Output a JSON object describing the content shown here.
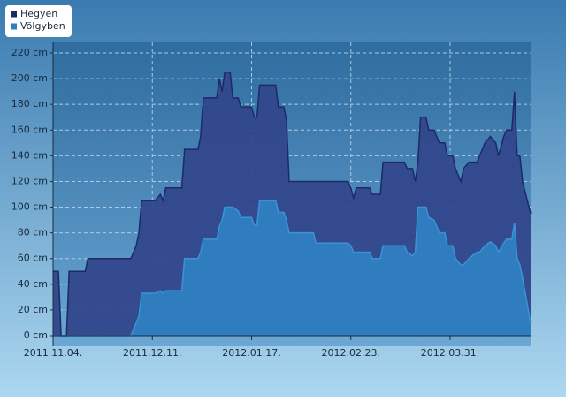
{
  "chart_data": {
    "type": "area",
    "x": [
      "2011.11.04.",
      "2011.11.06.",
      "2011.11.07.",
      "2011.11.09.",
      "2011.11.10.",
      "2011.11.16.",
      "2011.11.17.",
      "2011.12.03.",
      "2011.12.04.",
      "2011.12.05.",
      "2011.12.06.",
      "2011.12.07.",
      "2011.12.12.",
      "2011.12.14.",
      "2011.12.15.",
      "2011.12.16.",
      "2011.12.22.",
      "2011.12.23.",
      "2011.12.28.",
      "2011.12.29.",
      "2011.12.30.",
      "2012.01.04.",
      "2012.01.05.",
      "2012.01.06.",
      "2012.01.07.",
      "2012.01.09.",
      "2012.01.10.",
      "2012.01.12.",
      "2012.01.13.",
      "2012.01.17.",
      "2012.01.18.",
      "2012.01.19.",
      "2012.01.20.",
      "2012.01.26.",
      "2012.01.27.",
      "2012.01.29.",
      "2012.01.30.",
      "2012.01.31.",
      "2012.02.09.",
      "2012.02.10.",
      "2012.02.22.",
      "2012.02.23.",
      "2012.02.24.",
      "2012.02.25.",
      "2012.03.01.",
      "2012.03.02.",
      "2012.03.05.",
      "2012.03.06.",
      "2012.03.14.",
      "2012.03.15.",
      "2012.03.17.",
      "2012.03.18.",
      "2012.03.19.",
      "2012.03.20.",
      "2012.03.22.",
      "2012.03.23.",
      "2012.03.25.",
      "2012.03.27.",
      "2012.03.29.",
      "2012.03.30.",
      "2012.04.01.",
      "2012.04.02.",
      "2012.04.04.",
      "2012.04.05.",
      "2012.04.07.",
      "2012.04.10.",
      "2012.04.11.",
      "2012.04.13.",
      "2012.04.15.",
      "2012.04.17.",
      "2012.04.18.",
      "2012.04.20.",
      "2012.04.21.",
      "2012.04.23.",
      "2012.04.24.",
      "2012.04.25.",
      "2012.04.26.",
      "2012.04.27.",
      "2012.04.30."
    ],
    "series": [
      {
        "name": "Hegyen",
        "color": "#33478c",
        "line_color": "#1c2a66",
        "values": [
          50,
          50,
          0,
          0,
          50,
          50,
          60,
          60,
          65,
          70,
          80,
          105,
          105,
          110,
          105,
          115,
          115,
          145,
          145,
          155,
          185,
          185,
          200,
          190,
          205,
          205,
          185,
          185,
          178,
          178,
          170,
          170,
          195,
          195,
          178,
          178,
          168,
          120,
          120,
          120,
          120,
          115,
          107,
          115,
          115,
          110,
          110,
          135,
          135,
          130,
          130,
          120,
          135,
          170,
          170,
          160,
          160,
          150,
          150,
          140,
          140,
          130,
          120,
          130,
          135,
          135,
          140,
          150,
          155,
          150,
          140,
          155,
          160,
          160,
          190,
          140,
          140,
          120,
          95
        ]
      },
      {
        "name": "Völgyben",
        "color": "#2f7fc1",
        "line_color": "#3b93d6",
        "values": [
          0,
          0,
          0,
          0,
          0,
          0,
          0,
          0,
          5,
          10,
          15,
          33,
          33,
          35,
          33,
          35,
          35,
          60,
          60,
          65,
          75,
          75,
          85,
          90,
          100,
          100,
          100,
          97,
          92,
          92,
          86,
          86,
          105,
          105,
          96,
          96,
          90,
          80,
          80,
          72,
          72,
          70,
          65,
          65,
          65,
          60,
          60,
          70,
          70,
          65,
          62,
          65,
          100,
          100,
          100,
          92,
          90,
          80,
          80,
          70,
          70,
          60,
          55,
          55,
          60,
          65,
          65,
          70,
          73,
          70,
          65,
          72,
          75,
          75,
          88,
          60,
          55,
          45,
          10
        ]
      }
    ],
    "xlim": [
      "2011.11.04.",
      "2012.04.30."
    ],
    "xticks": [
      "2011.11.04.",
      "2011.12.11.",
      "2012.01.17.",
      "2012.02.23.",
      "2012.03.31."
    ],
    "ylim": [
      0,
      220
    ],
    "yticks": [
      {
        "value": 0,
        "label": "0 cm"
      },
      {
        "value": 20,
        "label": "20 cm"
      },
      {
        "value": 40,
        "label": "40 cm"
      },
      {
        "value": 60,
        "label": "60 cm"
      },
      {
        "value": 80,
        "label": "80 cm"
      },
      {
        "value": 100,
        "label": "100 cm"
      },
      {
        "value": 120,
        "label": "120 cm"
      },
      {
        "value": 140,
        "label": "140 cm"
      },
      {
        "value": 160,
        "label": "160 cm"
      },
      {
        "value": 180,
        "label": "180 cm"
      },
      {
        "value": 200,
        "label": "200 cm"
      },
      {
        "value": 220,
        "label": "220 cm"
      }
    ],
    "grid": true,
    "legend": "top-left"
  }
}
